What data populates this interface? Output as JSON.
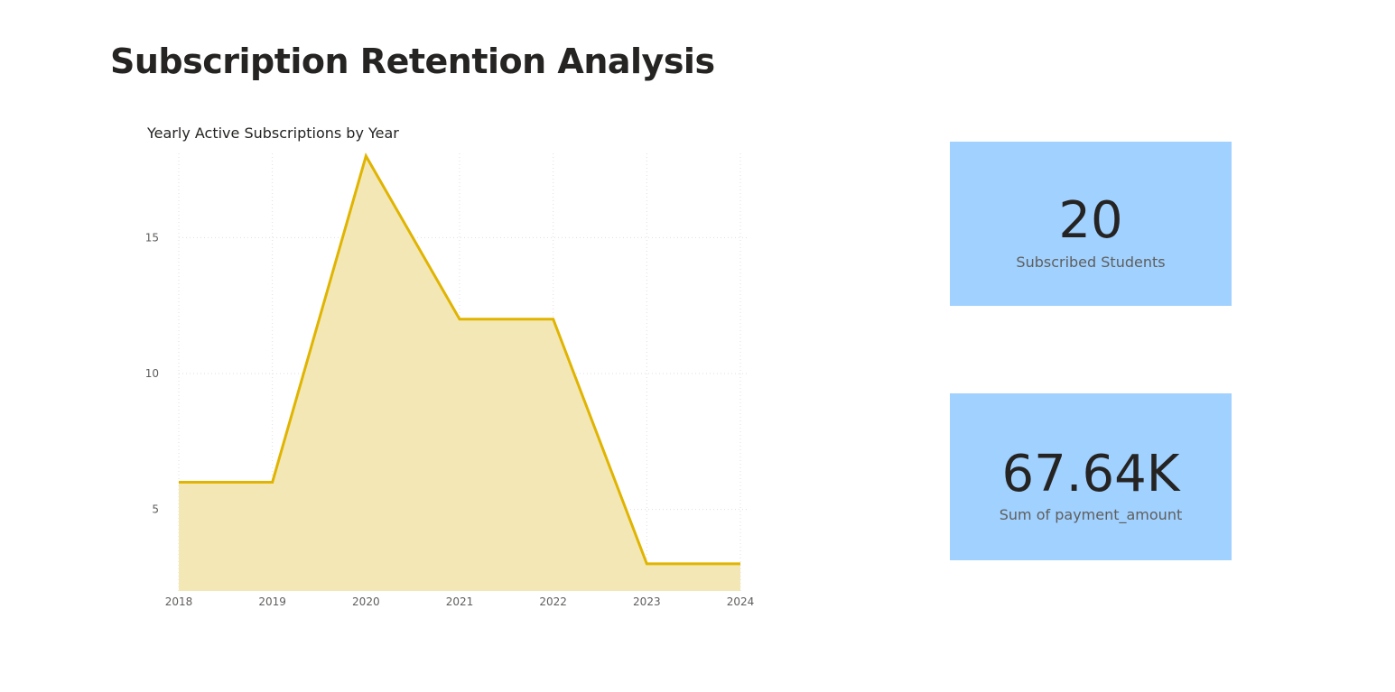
{
  "page": {
    "title": "Subscription Retention Analysis"
  },
  "chart_data": {
    "type": "area",
    "title": "Yearly Active Subscriptions by Year",
    "xlabel": "",
    "ylabel": "",
    "x": [
      2018,
      2019,
      2020,
      2021,
      2022,
      2023,
      2024
    ],
    "x_tick_labels": [
      "2018",
      "2019",
      "2020",
      "2021",
      "2022",
      "2023",
      "2024"
    ],
    "values": [
      6,
      6,
      18,
      12,
      12,
      3,
      3
    ],
    "y_ticks": [
      5,
      10,
      15
    ],
    "y_tick_labels": [
      "5",
      "10",
      "15"
    ],
    "ylim": [
      2,
      18
    ],
    "grid": true,
    "line_color": "#e0b400",
    "fill_color": "#f3e8b5"
  },
  "kpis": {
    "students": {
      "value": "20",
      "label": "Subscribed Students"
    },
    "payments": {
      "value": "67.64K",
      "label": "Sum of payment_amount"
    },
    "card_color": "#a0d1ff"
  }
}
